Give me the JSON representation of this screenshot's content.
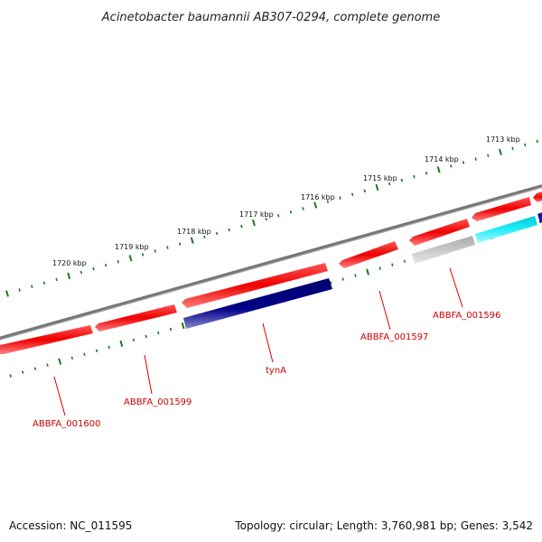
{
  "title": "Acinetobacter baumannii AB307-0294, complete genome",
  "footer": {
    "accession": "Accession: NC_011595",
    "summary": "Topology: circular; Length: 3,760,981 bp; Genes: 3,542"
  },
  "kbp_labels": [
    "1713 kbp",
    "1714 kbp",
    "1715 kbp",
    "1716 kbp",
    "1717 kbp",
    "1718 kbp",
    "1719 kbp",
    "1720 kbp"
  ],
  "gene_labels": [
    "ABBFA_001600",
    "ABBFA_001599",
    "tynA",
    "ABBFA_001597",
    "ABBFA_001596"
  ],
  "colors": {
    "backbone": "#808080",
    "gene_red": "#ee1111",
    "gene_navy": "#000080",
    "gene_gray": "#c8c8c8",
    "gene_cyan": "#22e6f0",
    "tick": "#1a7a1a",
    "label": "#cc0000"
  }
}
